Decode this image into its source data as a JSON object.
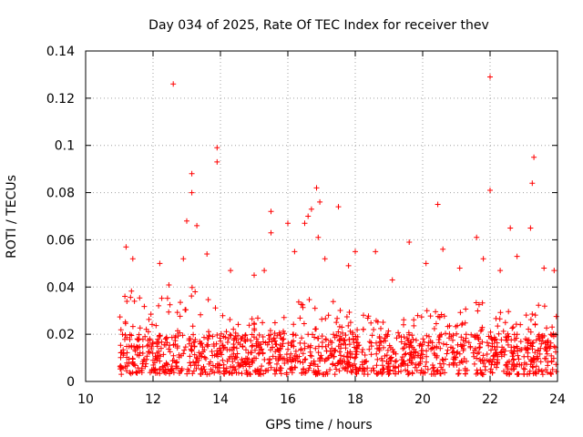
{
  "chart_data": {
    "type": "scatter",
    "title": "Day 034 of 2025, Rate Of TEC Index for receiver thev",
    "xlabel": "GPS time / hours",
    "ylabel": "ROTI / TECUs",
    "xlim": [
      10,
      24
    ],
    "ylim": [
      0,
      0.14
    ],
    "xticks": [
      "10",
      "12",
      "14",
      "16",
      "18",
      "20",
      "22",
      "24"
    ],
    "yticks": [
      "0",
      "0.02",
      "0.04",
      "0.06",
      "0.08",
      "0.1",
      "0.12",
      "0.14"
    ],
    "grid": true,
    "marker": "+",
    "color": "#ff0000",
    "series": [
      {
        "name": "ROTI",
        "x": [
          12.6,
          22.0,
          13.9,
          13.9,
          23.3,
          13.15,
          13.15,
          16.85,
          16.95,
          22.0,
          23.25,
          15.5,
          15.5,
          20.45,
          16.6,
          16.7,
          16.5,
          17.5,
          13.0,
          13.3,
          23.2,
          16.0,
          16.9,
          18.0,
          19.6,
          21.6,
          22.6,
          11.2,
          11.4,
          12.2,
          12.9,
          13.6,
          14.3,
          15.0,
          15.3,
          16.2,
          17.1,
          17.8,
          18.6,
          19.1,
          20.1,
          20.6,
          21.1,
          21.8,
          22.3,
          22.8,
          23.6,
          23.9
        ],
        "y": [
          0.126,
          0.129,
          0.099,
          0.093,
          0.095,
          0.088,
          0.08,
          0.082,
          0.076,
          0.081,
          0.084,
          0.072,
          0.063,
          0.075,
          0.07,
          0.073,
          0.067,
          0.074,
          0.068,
          0.066,
          0.065,
          0.067,
          0.061,
          0.055,
          0.059,
          0.061,
          0.065,
          0.057,
          0.052,
          0.05,
          0.052,
          0.054,
          0.047,
          0.045,
          0.047,
          0.055,
          0.052,
          0.049,
          0.055,
          0.043,
          0.05,
          0.056,
          0.048,
          0.052,
          0.047,
          0.053,
          0.048,
          0.047
        ]
      }
    ],
    "density": {
      "x_start": 11.0,
      "x_end": 24.0,
      "baseline_min": 0.003,
      "baseline_max": 0.02,
      "envelope_hours": [
        11.0,
        11.5,
        12.0,
        12.5,
        13.0,
        13.5,
        14.0,
        14.5,
        15.0,
        15.5,
        16.0,
        16.5,
        17.0,
        17.5,
        18.0,
        18.5,
        19.0,
        19.5,
        20.0,
        20.5,
        21.0,
        21.5,
        22.0,
        22.5,
        23.0,
        23.5,
        24.0
      ],
      "envelope_roti": [
        0.035,
        0.04,
        0.03,
        0.045,
        0.04,
        0.04,
        0.035,
        0.025,
        0.03,
        0.025,
        0.03,
        0.04,
        0.035,
        0.035,
        0.028,
        0.03,
        0.025,
        0.028,
        0.03,
        0.03,
        0.03,
        0.035,
        0.035,
        0.03,
        0.035,
        0.035,
        0.03
      ]
    }
  }
}
